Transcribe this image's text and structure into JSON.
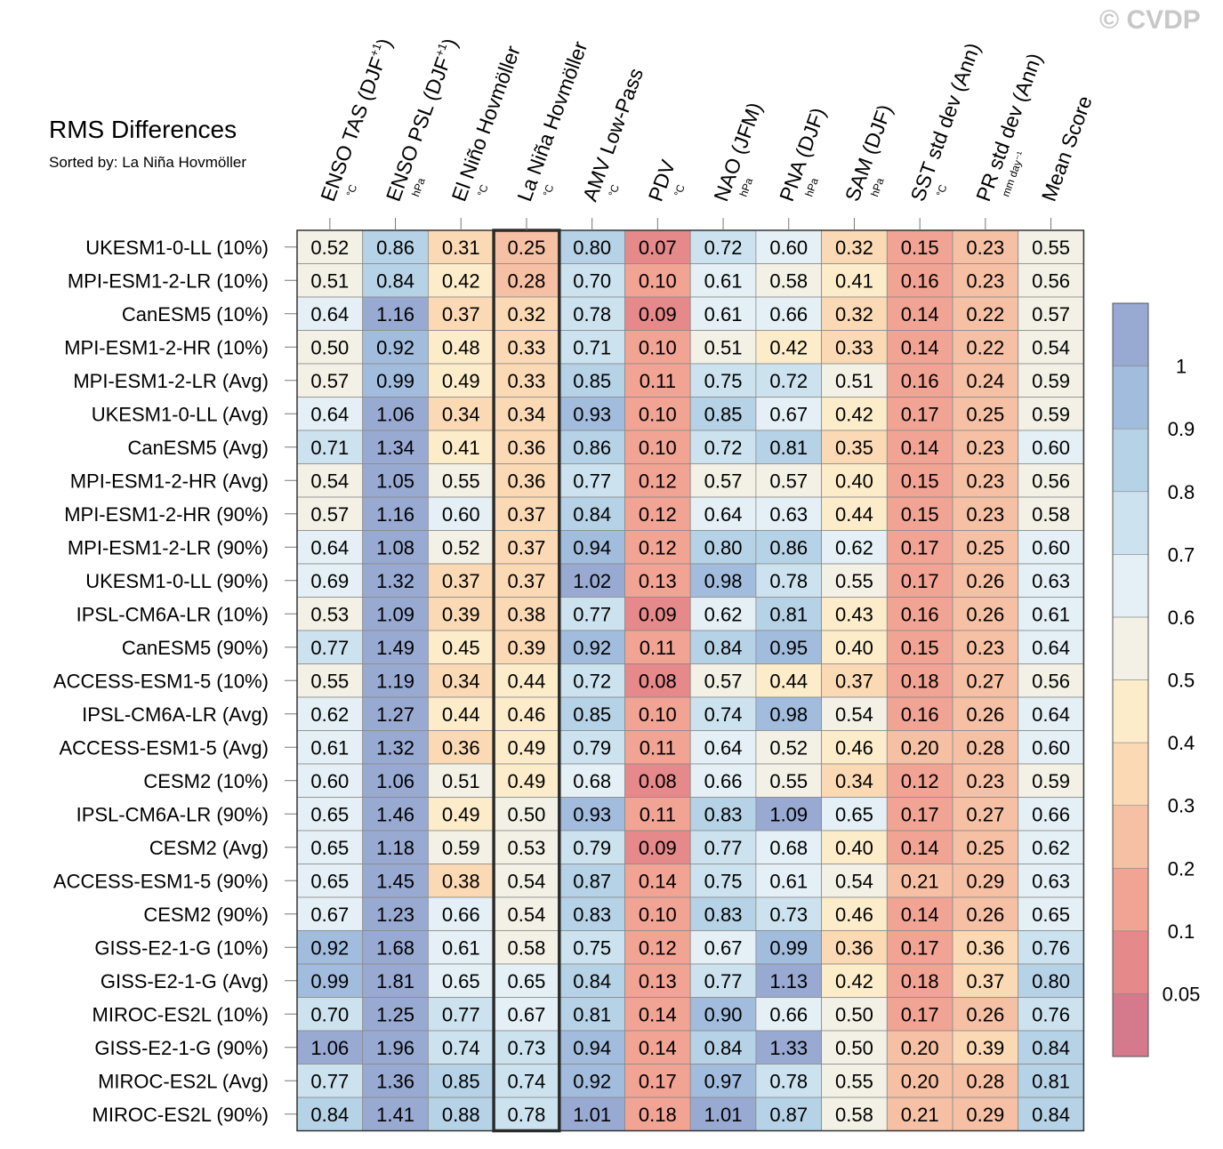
{
  "watermark": "© CVDP",
  "chart_data": {
    "type": "heatmap",
    "title": "RMS Differences",
    "subtitle": "Sorted by: La Niña Hovmöller",
    "highlighted_column": "La Niña Hovmöller",
    "columns": [
      {
        "name": "ENSO TAS (DJF",
        "sup": "+1",
        "close": ")",
        "unit": "°C"
      },
      {
        "name": "ENSO PSL (DJF",
        "sup": "+1",
        "close": ")",
        "unit": "hPa"
      },
      {
        "name": "El Niño Hovmöller",
        "sup": "",
        "close": "",
        "unit": "°C"
      },
      {
        "name": "La Niña Hovmöller",
        "sup": "",
        "close": "",
        "unit": "°C"
      },
      {
        "name": "AMV Low-Pass",
        "sup": "",
        "close": "",
        "unit": "°C"
      },
      {
        "name": "PDV",
        "sup": "",
        "close": "",
        "unit": "°C"
      },
      {
        "name": "NAO (JFM)",
        "sup": "",
        "close": "",
        "unit": "hPa"
      },
      {
        "name": "PNA (DJF)",
        "sup": "",
        "close": "",
        "unit": "hPa"
      },
      {
        "name": "SAM (DJF)",
        "sup": "",
        "close": "",
        "unit": "hPa"
      },
      {
        "name": "SST std dev (Ann)",
        "sup": "",
        "close": "",
        "unit": "°C"
      },
      {
        "name": "PR std dev (Ann)",
        "sup": "",
        "close": "",
        "unit": "mm day⁻¹"
      },
      {
        "name": "Mean Score",
        "sup": "",
        "close": "",
        "unit": ""
      }
    ],
    "rows": [
      {
        "label": "UKESM1-0-LL (10%)",
        "values": [
          "0.52",
          "0.86",
          "0.31",
          "0.25",
          "0.80",
          "0.07",
          "0.72",
          "0.60",
          "0.32",
          "0.15",
          "0.23",
          "0.55"
        ]
      },
      {
        "label": "MPI-ESM1-2-LR (10%)",
        "values": [
          "0.51",
          "0.84",
          "0.42",
          "0.28",
          "0.70",
          "0.10",
          "0.61",
          "0.58",
          "0.41",
          "0.16",
          "0.23",
          "0.56"
        ]
      },
      {
        "label": "CanESM5 (10%)",
        "values": [
          "0.64",
          "1.16",
          "0.37",
          "0.32",
          "0.78",
          "0.09",
          "0.61",
          "0.66",
          "0.32",
          "0.14",
          "0.22",
          "0.57"
        ]
      },
      {
        "label": "MPI-ESM1-2-HR (10%)",
        "values": [
          "0.50",
          "0.92",
          "0.48",
          "0.33",
          "0.71",
          "0.10",
          "0.51",
          "0.42",
          "0.33",
          "0.14",
          "0.22",
          "0.54"
        ]
      },
      {
        "label": "MPI-ESM1-2-LR (Avg)",
        "values": [
          "0.57",
          "0.99",
          "0.49",
          "0.33",
          "0.85",
          "0.11",
          "0.75",
          "0.72",
          "0.51",
          "0.16",
          "0.24",
          "0.59"
        ]
      },
      {
        "label": "UKESM1-0-LL (Avg)",
        "values": [
          "0.64",
          "1.06",
          "0.34",
          "0.34",
          "0.93",
          "0.10",
          "0.85",
          "0.67",
          "0.42",
          "0.17",
          "0.25",
          "0.59"
        ]
      },
      {
        "label": "CanESM5 (Avg)",
        "values": [
          "0.71",
          "1.34",
          "0.41",
          "0.36",
          "0.86",
          "0.10",
          "0.72",
          "0.81",
          "0.35",
          "0.14",
          "0.23",
          "0.60"
        ]
      },
      {
        "label": "MPI-ESM1-2-HR (Avg)",
        "values": [
          "0.54",
          "1.05",
          "0.55",
          "0.36",
          "0.77",
          "0.12",
          "0.57",
          "0.57",
          "0.40",
          "0.15",
          "0.23",
          "0.56"
        ]
      },
      {
        "label": "MPI-ESM1-2-HR (90%)",
        "values": [
          "0.57",
          "1.16",
          "0.60",
          "0.37",
          "0.84",
          "0.12",
          "0.64",
          "0.63",
          "0.44",
          "0.15",
          "0.23",
          "0.58"
        ]
      },
      {
        "label": "MPI-ESM1-2-LR (90%)",
        "values": [
          "0.64",
          "1.08",
          "0.52",
          "0.37",
          "0.94",
          "0.12",
          "0.80",
          "0.86",
          "0.62",
          "0.17",
          "0.25",
          "0.60"
        ]
      },
      {
        "label": "UKESM1-0-LL (90%)",
        "values": [
          "0.69",
          "1.32",
          "0.37",
          "0.37",
          "1.02",
          "0.13",
          "0.98",
          "0.78",
          "0.55",
          "0.17",
          "0.26",
          "0.63"
        ]
      },
      {
        "label": "IPSL-CM6A-LR (10%)",
        "values": [
          "0.53",
          "1.09",
          "0.39",
          "0.38",
          "0.77",
          "0.09",
          "0.62",
          "0.81",
          "0.43",
          "0.16",
          "0.26",
          "0.61"
        ]
      },
      {
        "label": "CanESM5 (90%)",
        "values": [
          "0.77",
          "1.49",
          "0.45",
          "0.39",
          "0.92",
          "0.11",
          "0.84",
          "0.95",
          "0.40",
          "0.15",
          "0.23",
          "0.64"
        ]
      },
      {
        "label": "ACCESS-ESM1-5 (10%)",
        "values": [
          "0.55",
          "1.19",
          "0.34",
          "0.44",
          "0.72",
          "0.08",
          "0.57",
          "0.44",
          "0.37",
          "0.18",
          "0.27",
          "0.56"
        ]
      },
      {
        "label": "IPSL-CM6A-LR (Avg)",
        "values": [
          "0.62",
          "1.27",
          "0.44",
          "0.46",
          "0.85",
          "0.10",
          "0.74",
          "0.98",
          "0.54",
          "0.16",
          "0.26",
          "0.64"
        ]
      },
      {
        "label": "ACCESS-ESM1-5 (Avg)",
        "values": [
          "0.61",
          "1.32",
          "0.36",
          "0.49",
          "0.79",
          "0.11",
          "0.64",
          "0.52",
          "0.46",
          "0.20",
          "0.28",
          "0.60"
        ]
      },
      {
        "label": "CESM2 (10%)",
        "values": [
          "0.60",
          "1.06",
          "0.51",
          "0.49",
          "0.68",
          "0.08",
          "0.66",
          "0.55",
          "0.34",
          "0.12",
          "0.23",
          "0.59"
        ]
      },
      {
        "label": "IPSL-CM6A-LR (90%)",
        "values": [
          "0.65",
          "1.46",
          "0.49",
          "0.50",
          "0.93",
          "0.11",
          "0.83",
          "1.09",
          "0.65",
          "0.17",
          "0.27",
          "0.66"
        ]
      },
      {
        "label": "CESM2 (Avg)",
        "values": [
          "0.65",
          "1.18",
          "0.59",
          "0.53",
          "0.79",
          "0.09",
          "0.77",
          "0.68",
          "0.40",
          "0.14",
          "0.25",
          "0.62"
        ]
      },
      {
        "label": "ACCESS-ESM1-5 (90%)",
        "values": [
          "0.65",
          "1.45",
          "0.38",
          "0.54",
          "0.87",
          "0.14",
          "0.75",
          "0.61",
          "0.54",
          "0.21",
          "0.29",
          "0.63"
        ]
      },
      {
        "label": "CESM2 (90%)",
        "values": [
          "0.67",
          "1.23",
          "0.66",
          "0.54",
          "0.83",
          "0.10",
          "0.83",
          "0.73",
          "0.46",
          "0.14",
          "0.26",
          "0.65"
        ]
      },
      {
        "label": "GISS-E2-1-G (10%)",
        "values": [
          "0.92",
          "1.68",
          "0.61",
          "0.58",
          "0.75",
          "0.12",
          "0.67",
          "0.99",
          "0.36",
          "0.17",
          "0.36",
          "0.76"
        ]
      },
      {
        "label": "GISS-E2-1-G (Avg)",
        "values": [
          "0.99",
          "1.81",
          "0.65",
          "0.65",
          "0.84",
          "0.13",
          "0.77",
          "1.13",
          "0.42",
          "0.18",
          "0.37",
          "0.80"
        ]
      },
      {
        "label": "MIROC-ES2L (10%)",
        "values": [
          "0.70",
          "1.25",
          "0.77",
          "0.67",
          "0.81",
          "0.14",
          "0.90",
          "0.66",
          "0.50",
          "0.17",
          "0.26",
          "0.76"
        ]
      },
      {
        "label": "GISS-E2-1-G (90%)",
        "values": [
          "1.06",
          "1.96",
          "0.74",
          "0.73",
          "0.94",
          "0.14",
          "0.84",
          "1.33",
          "0.50",
          "0.20",
          "0.39",
          "0.84"
        ]
      },
      {
        "label": "MIROC-ES2L (Avg)",
        "values": [
          "0.77",
          "1.36",
          "0.85",
          "0.74",
          "0.92",
          "0.17",
          "0.97",
          "0.78",
          "0.55",
          "0.20",
          "0.28",
          "0.81"
        ]
      },
      {
        "label": "MIROC-ES2L (90%)",
        "values": [
          "0.84",
          "1.41",
          "0.88",
          "0.78",
          "1.01",
          "0.18",
          "1.01",
          "0.87",
          "0.58",
          "0.21",
          "0.29",
          "0.84"
        ]
      }
    ],
    "colorbar": {
      "levels": [
        0.05,
        0.1,
        0.2,
        0.3,
        0.4,
        0.5,
        0.6,
        0.7,
        0.8,
        0.9,
        1
      ],
      "labels": [
        "0.05",
        "0.1",
        "0.2",
        "0.3",
        "0.4",
        "0.5",
        "0.6",
        "0.7",
        "0.8",
        "0.9",
        "1"
      ],
      "colors": [
        "#d47a8c",
        "#e6898b",
        "#f1a394",
        "#f6c0a4",
        "#fbd9b4",
        "#fcecca",
        "#f3f1e6",
        "#e4f0f6",
        "#cce3ef",
        "#b6d2e6",
        "#a2bcdd",
        "#98a9d2"
      ]
    }
  }
}
